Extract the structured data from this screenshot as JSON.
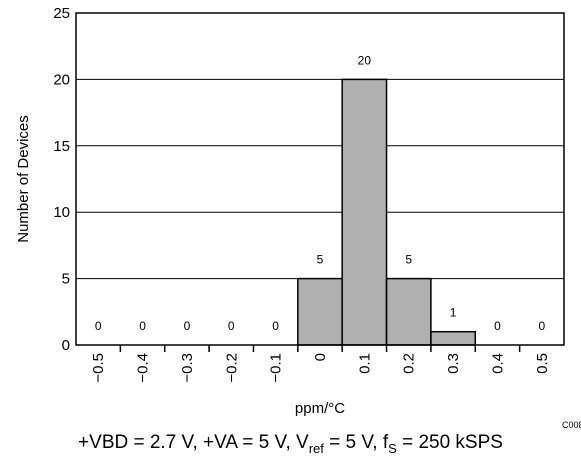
{
  "chart_data": {
    "type": "bar",
    "categories": [
      "-0.5",
      "-0.4",
      "-0.3",
      "-0.2",
      "-0.1",
      "0",
      "0.1",
      "0.2",
      "0.3",
      "0.4",
      "0.5"
    ],
    "tick_labels": [
      "−0.5",
      "−0.4",
      "−0.3",
      "−0.2",
      "−0.1",
      "0",
      "0.1",
      "0.2",
      "0.3",
      "0.4",
      "0.5"
    ],
    "values": [
      0,
      0,
      0,
      0,
      0,
      5,
      20,
      5,
      1,
      0,
      0
    ],
    "data_labels": [
      "0",
      "0",
      "0",
      "0",
      "0",
      "5",
      "20",
      "5",
      "1",
      "0",
      "0"
    ],
    "xlabel": "ppm/°C",
    "ylabel": "Number of Devices",
    "ylim": [
      0,
      25
    ],
    "yticks": [
      0,
      5,
      10,
      15,
      20,
      25
    ],
    "grid": "horizontal",
    "bar_color": "#b0b0b0",
    "figure_id": "C008"
  },
  "caption": {
    "part1": "+VBD = 2.7 V, +VA = 5 V, V",
    "sub1": "ref",
    "part2": " = 5 V, f",
    "sub2": "S",
    "part3": " = 250 kSPS"
  }
}
